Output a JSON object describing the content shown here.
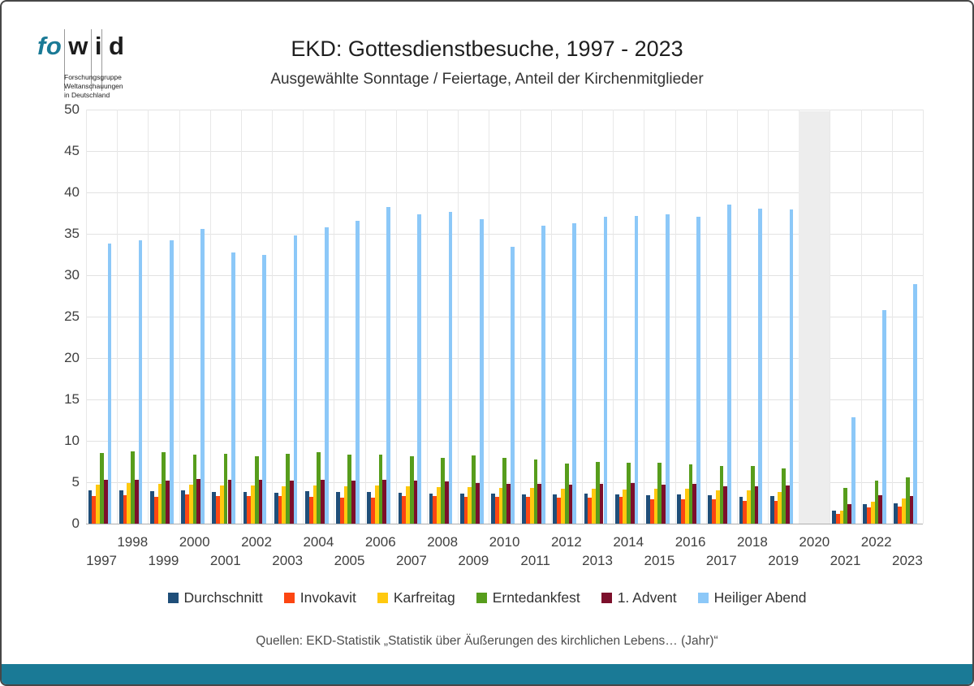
{
  "logo": {
    "fo": "fo",
    "wid_letters": [
      "w",
      "i",
      "d"
    ],
    "sub": "Forschungsgruppe\nWeltanschauungen\nin Deutschland",
    "teal": "#1A7A96"
  },
  "header": {
    "title": "EKD: Gottesdienstbesuche, 1997 - 2023",
    "subtitle": "Ausgewählte Sonntage / Feiertage, Anteil der Kirchenmitglieder"
  },
  "footer": {
    "source": "Quellen: EKD-Statistik „Statistik über Äußerungen des kirchlichen Lebens… (Jahr)“"
  },
  "chart_data": {
    "type": "bar",
    "title": "EKD: Gottesdienstbesuche, 1997 - 2023",
    "subtitle": "Ausgewählte Sonntage / Feiertage, Anteil der Kirchenmitglieder",
    "ylabel": "",
    "xlabel": "",
    "ylim": [
      0,
      50
    ],
    "ytick_step": 5,
    "grid": true,
    "legend_position": "bottom",
    "no_data_years": [
      2020
    ],
    "no_data_band_color": "#ededed",
    "categories": [
      1997,
      1998,
      1999,
      2000,
      2001,
      2002,
      2003,
      2004,
      2005,
      2006,
      2007,
      2008,
      2009,
      2010,
      2011,
      2012,
      2013,
      2014,
      2015,
      2016,
      2017,
      2018,
      2019,
      2020,
      2021,
      2022,
      2023
    ],
    "series": [
      {
        "name": "Durchschnitt",
        "color": "#1F4E79",
        "values": [
          4.0,
          4.0,
          3.9,
          4.0,
          3.8,
          3.8,
          3.7,
          3.9,
          3.8,
          3.8,
          3.7,
          3.6,
          3.6,
          3.6,
          3.5,
          3.5,
          3.6,
          3.5,
          3.4,
          3.5,
          3.4,
          3.2,
          3.3,
          null,
          1.6,
          2.4,
          2.5
        ]
      },
      {
        "name": "Invokavit",
        "color": "#FC4612",
        "values": [
          3.3,
          3.4,
          3.2,
          3.5,
          3.3,
          3.3,
          3.3,
          3.2,
          3.1,
          3.1,
          3.3,
          3.3,
          3.2,
          3.2,
          3.2,
          3.1,
          3.1,
          3.2,
          2.9,
          2.9,
          2.9,
          2.7,
          2.7,
          null,
          1.2,
          2.0,
          2.1
        ]
      },
      {
        "name": "Karfreitag",
        "color": "#FFC90F",
        "values": [
          4.7,
          4.9,
          4.8,
          4.7,
          4.6,
          4.6,
          4.5,
          4.6,
          4.5,
          4.6,
          4.5,
          4.4,
          4.4,
          4.3,
          4.3,
          4.2,
          4.2,
          4.1,
          4.2,
          4.2,
          4.0,
          4.0,
          3.8,
          null,
          1.6,
          2.6,
          3.0
        ]
      },
      {
        "name": "Erntedankfest",
        "color": "#579D1C",
        "values": [
          8.5,
          8.7,
          8.6,
          8.3,
          8.4,
          8.1,
          8.4,
          8.6,
          8.3,
          8.3,
          8.1,
          7.9,
          8.2,
          7.9,
          7.7,
          7.3,
          7.5,
          7.4,
          7.4,
          7.2,
          7.0,
          7.0,
          6.7,
          null,
          4.3,
          5.2,
          5.6
        ]
      },
      {
        "name": "1. Advent",
        "color": "#7C0F2B",
        "values": [
          5.3,
          5.3,
          5.2,
          5.4,
          5.3,
          5.3,
          5.2,
          5.3,
          5.2,
          5.3,
          5.2,
          5.1,
          4.9,
          4.8,
          4.8,
          4.7,
          4.8,
          4.9,
          4.7,
          4.8,
          4.5,
          4.5,
          4.6,
          null,
          2.4,
          3.4,
          3.3
        ]
      },
      {
        "name": "Heiliger Abend",
        "color": "#8CC8F8",
        "values": [
          33.8,
          34.2,
          34.2,
          35.6,
          32.7,
          32.5,
          34.8,
          35.8,
          36.6,
          38.2,
          37.4,
          37.6,
          36.8,
          33.4,
          36.0,
          36.3,
          37.1,
          37.2,
          37.4,
          37.1,
          38.5,
          38.0,
          37.9,
          null,
          12.8,
          25.8,
          28.9
        ]
      }
    ]
  }
}
